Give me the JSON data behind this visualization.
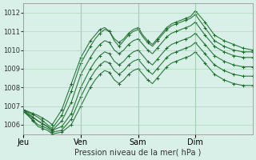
{
  "title": "",
  "xlabel": "Pression niveau de la mer( hPa )",
  "ylabel": "",
  "bg_color": "#d8f0e8",
  "grid_color": "#b0d8c0",
  "line_color": "#1a6b2a",
  "vline_color": "#a0c8b0",
  "ylim": [
    1005.5,
    1012.5
  ],
  "yticks": [
    1006,
    1007,
    1008,
    1009,
    1010,
    1011,
    1012
  ],
  "xtick_labels": [
    "Jeu",
    "Ven",
    "Sam",
    "Dim"
  ],
  "xtick_positions": [
    0,
    72,
    144,
    216
  ],
  "lines_params": [
    [
      [
        0,
        1006.8
      ],
      [
        18,
        1006.5
      ],
      [
        30,
        1006.2
      ],
      [
        36,
        1006.0
      ],
      [
        48,
        1006.8
      ],
      [
        60,
        1008.2
      ],
      [
        72,
        1009.6
      ],
      [
        84,
        1010.5
      ],
      [
        90,
        1010.8
      ],
      [
        96,
        1011.1
      ],
      [
        102,
        1011.2
      ],
      [
        108,
        1011.0
      ],
      [
        114,
        1010.6
      ],
      [
        120,
        1010.4
      ],
      [
        126,
        1010.6
      ],
      [
        132,
        1010.9
      ],
      [
        138,
        1011.1
      ],
      [
        144,
        1011.2
      ],
      [
        150,
        1010.8
      ],
      [
        156,
        1010.5
      ],
      [
        162,
        1010.3
      ],
      [
        168,
        1010.6
      ],
      [
        174,
        1010.9
      ],
      [
        180,
        1011.2
      ],
      [
        186,
        1011.4
      ],
      [
        192,
        1011.5
      ],
      [
        198,
        1011.6
      ],
      [
        204,
        1011.7
      ],
      [
        210,
        1011.8
      ],
      [
        216,
        1012.1
      ],
      [
        228,
        1011.5
      ],
      [
        240,
        1010.8
      ],
      [
        252,
        1010.5
      ],
      [
        264,
        1010.3
      ],
      [
        276,
        1010.1
      ],
      [
        288,
        1010.0
      ]
    ],
    [
      [
        0,
        1006.8
      ],
      [
        18,
        1006.4
      ],
      [
        30,
        1006.0
      ],
      [
        36,
        1005.8
      ],
      [
        48,
        1006.5
      ],
      [
        60,
        1007.8
      ],
      [
        72,
        1009.3
      ],
      [
        84,
        1010.2
      ],
      [
        90,
        1010.6
      ],
      [
        96,
        1010.9
      ],
      [
        102,
        1011.1
      ],
      [
        108,
        1011.0
      ],
      [
        114,
        1010.5
      ],
      [
        120,
        1010.2
      ],
      [
        126,
        1010.5
      ],
      [
        132,
        1010.8
      ],
      [
        138,
        1011.0
      ],
      [
        144,
        1011.1
      ],
      [
        150,
        1010.7
      ],
      [
        156,
        1010.4
      ],
      [
        162,
        1010.2
      ],
      [
        168,
        1010.5
      ],
      [
        174,
        1010.8
      ],
      [
        180,
        1011.1
      ],
      [
        186,
        1011.3
      ],
      [
        192,
        1011.4
      ],
      [
        198,
        1011.5
      ],
      [
        204,
        1011.6
      ],
      [
        210,
        1011.7
      ],
      [
        216,
        1011.9
      ],
      [
        228,
        1011.2
      ],
      [
        240,
        1010.5
      ],
      [
        252,
        1010.2
      ],
      [
        264,
        1010.0
      ],
      [
        276,
        1009.9
      ],
      [
        288,
        1009.9
      ]
    ],
    [
      [
        0,
        1006.7
      ],
      [
        18,
        1006.2
      ],
      [
        30,
        1005.9
      ],
      [
        36,
        1005.7
      ],
      [
        48,
        1006.2
      ],
      [
        60,
        1007.2
      ],
      [
        72,
        1008.7
      ],
      [
        84,
        1009.6
      ],
      [
        90,
        1010.0
      ],
      [
        96,
        1010.3
      ],
      [
        102,
        1010.5
      ],
      [
        108,
        1010.4
      ],
      [
        114,
        1010.0
      ],
      [
        120,
        1009.8
      ],
      [
        126,
        1010.0
      ],
      [
        132,
        1010.3
      ],
      [
        138,
        1010.5
      ],
      [
        144,
        1010.6
      ],
      [
        150,
        1010.3
      ],
      [
        156,
        1010.0
      ],
      [
        162,
        1009.8
      ],
      [
        168,
        1010.1
      ],
      [
        174,
        1010.4
      ],
      [
        180,
        1010.7
      ],
      [
        186,
        1010.9
      ],
      [
        192,
        1011.0
      ],
      [
        198,
        1011.1
      ],
      [
        204,
        1011.2
      ],
      [
        210,
        1011.3
      ],
      [
        216,
        1011.5
      ],
      [
        228,
        1010.8
      ],
      [
        240,
        1010.2
      ],
      [
        252,
        1009.9
      ],
      [
        264,
        1009.7
      ],
      [
        276,
        1009.6
      ],
      [
        288,
        1009.6
      ]
    ],
    [
      [
        0,
        1006.8
      ],
      [
        18,
        1006.2
      ],
      [
        30,
        1005.9
      ],
      [
        36,
        1005.7
      ],
      [
        48,
        1005.9
      ],
      [
        60,
        1006.6
      ],
      [
        72,
        1008.0
      ],
      [
        84,
        1009.0
      ],
      [
        90,
        1009.4
      ],
      [
        96,
        1009.7
      ],
      [
        102,
        1009.9
      ],
      [
        108,
        1009.8
      ],
      [
        114,
        1009.4
      ],
      [
        120,
        1009.2
      ],
      [
        126,
        1009.4
      ],
      [
        132,
        1009.7
      ],
      [
        138,
        1009.9
      ],
      [
        144,
        1010.0
      ],
      [
        150,
        1009.7
      ],
      [
        156,
        1009.4
      ],
      [
        162,
        1009.2
      ],
      [
        168,
        1009.5
      ],
      [
        174,
        1009.8
      ],
      [
        180,
        1010.1
      ],
      [
        186,
        1010.3
      ],
      [
        192,
        1010.4
      ],
      [
        198,
        1010.5
      ],
      [
        204,
        1010.6
      ],
      [
        210,
        1010.7
      ],
      [
        216,
        1010.9
      ],
      [
        228,
        1010.3
      ],
      [
        240,
        1009.7
      ],
      [
        252,
        1009.4
      ],
      [
        264,
        1009.2
      ],
      [
        276,
        1009.1
      ],
      [
        288,
        1009.1
      ]
    ],
    [
      [
        0,
        1006.7
      ],
      [
        18,
        1006.0
      ],
      [
        30,
        1005.8
      ],
      [
        36,
        1005.6
      ],
      [
        48,
        1005.7
      ],
      [
        60,
        1006.3
      ],
      [
        72,
        1007.5
      ],
      [
        84,
        1008.5
      ],
      [
        90,
        1008.9
      ],
      [
        96,
        1009.2
      ],
      [
        102,
        1009.4
      ],
      [
        108,
        1009.3
      ],
      [
        114,
        1008.9
      ],
      [
        120,
        1008.7
      ],
      [
        126,
        1008.9
      ],
      [
        132,
        1009.2
      ],
      [
        138,
        1009.4
      ],
      [
        144,
        1009.5
      ],
      [
        150,
        1009.2
      ],
      [
        156,
        1008.9
      ],
      [
        162,
        1008.7
      ],
      [
        168,
        1009.0
      ],
      [
        174,
        1009.3
      ],
      [
        180,
        1009.6
      ],
      [
        186,
        1009.8
      ],
      [
        192,
        1009.9
      ],
      [
        198,
        1010.0
      ],
      [
        204,
        1010.1
      ],
      [
        210,
        1010.2
      ],
      [
        216,
        1010.4
      ],
      [
        228,
        1009.8
      ],
      [
        240,
        1009.2
      ],
      [
        252,
        1008.9
      ],
      [
        264,
        1008.7
      ],
      [
        276,
        1008.6
      ],
      [
        288,
        1008.6
      ]
    ],
    [
      [
        0,
        1006.8
      ],
      [
        18,
        1005.9
      ],
      [
        30,
        1005.7
      ],
      [
        36,
        1005.5
      ],
      [
        48,
        1005.6
      ],
      [
        60,
        1006.0
      ],
      [
        72,
        1007.0
      ],
      [
        84,
        1008.0
      ],
      [
        90,
        1008.4
      ],
      [
        96,
        1008.7
      ],
      [
        102,
        1008.9
      ],
      [
        108,
        1008.8
      ],
      [
        114,
        1008.4
      ],
      [
        120,
        1008.2
      ],
      [
        126,
        1008.4
      ],
      [
        132,
        1008.7
      ],
      [
        138,
        1008.9
      ],
      [
        144,
        1009.0
      ],
      [
        150,
        1008.7
      ],
      [
        156,
        1008.4
      ],
      [
        162,
        1008.2
      ],
      [
        168,
        1008.5
      ],
      [
        174,
        1008.8
      ],
      [
        180,
        1009.1
      ],
      [
        186,
        1009.3
      ],
      [
        192,
        1009.4
      ],
      [
        198,
        1009.5
      ],
      [
        204,
        1009.6
      ],
      [
        210,
        1009.7
      ],
      [
        216,
        1009.9
      ],
      [
        228,
        1009.3
      ],
      [
        240,
        1008.7
      ],
      [
        252,
        1008.4
      ],
      [
        264,
        1008.2
      ],
      [
        276,
        1008.1
      ],
      [
        288,
        1008.1
      ]
    ]
  ],
  "marker_line_idx": 0,
  "marker_interval": 12
}
